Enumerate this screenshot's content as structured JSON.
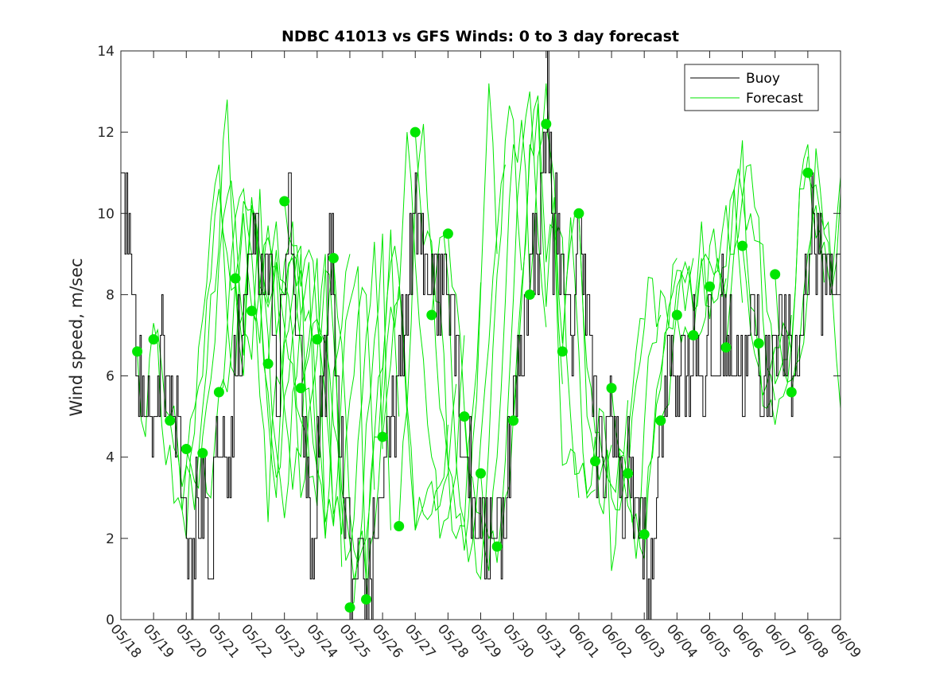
{
  "chart_data": {
    "type": "line",
    "title": "NDBC 41013 vs GFS Winds: 0 to 3 day forecast",
    "xlabel": "",
    "ylabel": "Wind speed, m/sec",
    "ylim": [
      0,
      14
    ],
    "yticks": [
      0,
      2,
      4,
      6,
      8,
      10,
      12,
      14
    ],
    "xlim": [
      0,
      22
    ],
    "xtick_labels": [
      "05/18",
      "05/19",
      "05/20",
      "05/21",
      "05/22",
      "05/23",
      "05/24",
      "05/25",
      "05/26",
      "05/27",
      "05/28",
      "05/29",
      "05/30",
      "05/31",
      "06/01",
      "06/02",
      "06/03",
      "06/04",
      "06/05",
      "06/06",
      "06/07",
      "06/08",
      "06/09"
    ],
    "grid": false,
    "legend_position": "top-right",
    "legend": [
      "Buoy",
      "Forecast"
    ],
    "colors": {
      "buoy": "#000000",
      "forecast": "#00e600",
      "axis": "#262626"
    },
    "buoy_anchors": [
      [
        0.0,
        9.5
      ],
      [
        0.1,
        11.0
      ],
      [
        0.25,
        9.0
      ],
      [
        0.45,
        7.0
      ],
      [
        0.6,
        6.0
      ],
      [
        0.8,
        4.5
      ],
      [
        1.0,
        5.0
      ],
      [
        1.25,
        7.0
      ],
      [
        1.55,
        6.0
      ],
      [
        1.8,
        5.0
      ],
      [
        2.0,
        3.0
      ],
      [
        2.2,
        1.5
      ],
      [
        2.4,
        3.0
      ],
      [
        2.6,
        2.5
      ],
      [
        2.75,
        0.3
      ],
      [
        2.9,
        3.0
      ],
      [
        3.1,
        4.5
      ],
      [
        3.3,
        3.5
      ],
      [
        3.5,
        5.5
      ],
      [
        3.7,
        7.5
      ],
      [
        3.9,
        8.5
      ],
      [
        4.1,
        10.0
      ],
      [
        4.3,
        8.0
      ],
      [
        4.5,
        9.5
      ],
      [
        4.7,
        6.5
      ],
      [
        4.85,
        5.0
      ],
      [
        5.0,
        8.5
      ],
      [
        5.15,
        10.0
      ],
      [
        5.3,
        8.5
      ],
      [
        5.5,
        6.0
      ],
      [
        5.7,
        4.0
      ],
      [
        5.8,
        2.0
      ],
      [
        5.9,
        1.0
      ],
      [
        6.1,
        5.0
      ],
      [
        6.3,
        6.5
      ],
      [
        6.4,
        8.5
      ],
      [
        6.5,
        9.5
      ],
      [
        6.6,
        5.5
      ],
      [
        6.8,
        3.5
      ],
      [
        6.95,
        2.0
      ],
      [
        7.05,
        1.0
      ],
      [
        7.2,
        0.5
      ],
      [
        7.35,
        1.5
      ],
      [
        7.5,
        0.5
      ],
      [
        7.7,
        1.5
      ],
      [
        7.9,
        2.5
      ],
      [
        8.1,
        4.0
      ],
      [
        8.3,
        4.5
      ],
      [
        8.5,
        5.5
      ],
      [
        8.7,
        7.0
      ],
      [
        8.9,
        9.0
      ],
      [
        9.0,
        10.0
      ],
      [
        9.2,
        9.0
      ],
      [
        9.4,
        8.5
      ],
      [
        9.6,
        9.0
      ],
      [
        9.8,
        8.0
      ],
      [
        10.0,
        9.0
      ],
      [
        10.2,
        8.0
      ],
      [
        10.4,
        5.5
      ],
      [
        10.6,
        4.0
      ],
      [
        10.8,
        3.0
      ],
      [
        11.0,
        2.5
      ],
      [
        11.2,
        2.0
      ],
      [
        11.4,
        2.5
      ],
      [
        11.6,
        2.0
      ],
      [
        11.8,
        3.0
      ],
      [
        12.0,
        5.0
      ],
      [
        12.2,
        6.0
      ],
      [
        12.4,
        8.0
      ],
      [
        12.6,
        9.0
      ],
      [
        12.8,
        9.0
      ],
      [
        13.0,
        12.0
      ],
      [
        13.1,
        13.5
      ],
      [
        13.2,
        9.0
      ],
      [
        13.4,
        10.5
      ],
      [
        13.6,
        7.5
      ],
      [
        13.8,
        7.0
      ],
      [
        14.0,
        9.5
      ],
      [
        14.2,
        9.0
      ],
      [
        14.4,
        6.5
      ],
      [
        14.6,
        4.0
      ],
      [
        14.8,
        3.5
      ],
      [
        15.0,
        5.5
      ],
      [
        15.2,
        4.0
      ],
      [
        15.4,
        3.0
      ],
      [
        15.6,
        4.0
      ],
      [
        15.8,
        2.5
      ],
      [
        16.0,
        2.0
      ],
      [
        16.1,
        1.0
      ],
      [
        16.2,
        0.3
      ],
      [
        16.4,
        3.0
      ],
      [
        16.6,
        5.0
      ],
      [
        16.8,
        6.5
      ],
      [
        17.0,
        6.0
      ],
      [
        17.2,
        7.0
      ],
      [
        17.4,
        6.0
      ],
      [
        17.6,
        7.5
      ],
      [
        17.8,
        5.5
      ],
      [
        18.0,
        7.0
      ],
      [
        18.2,
        6.0
      ],
      [
        18.4,
        7.5
      ],
      [
        18.6,
        6.5
      ],
      [
        18.8,
        7.0
      ],
      [
        19.0,
        6.5
      ],
      [
        19.2,
        6.0
      ],
      [
        19.4,
        7.5
      ],
      [
        19.6,
        6.0
      ],
      [
        19.8,
        5.5
      ],
      [
        20.0,
        7.0
      ],
      [
        20.2,
        7.5
      ],
      [
        20.4,
        6.5
      ],
      [
        20.6,
        6.0
      ],
      [
        20.8,
        7.0
      ],
      [
        21.0,
        9.0
      ],
      [
        21.2,
        10.0
      ],
      [
        21.4,
        8.5
      ]
    ],
    "forecast_members": [
      {
        "start": 0.5,
        "points": [
          6.6,
          4.5,
          7.3,
          4.8,
          4.3,
          3.0,
          3.8,
          5.2,
          6.0,
          8.4,
          10.6,
          9.0,
          8.2,
          6.0,
          10.2,
          8.0,
          5.6,
          3.5,
          5.5,
          7.0,
          9.0
        ]
      },
      {
        "start": 1.0,
        "points": [
          6.9,
          6.2,
          5.0,
          4.2,
          2.0,
          4.6,
          7.4,
          9.8,
          11.2,
          7.4,
          6.0,
          10.0,
          7.7,
          5.5,
          2.4,
          6.0,
          7.0,
          9.0,
          7.5
        ]
      },
      {
        "start": 1.5,
        "points": [
          4.9,
          4.0,
          3.8,
          2.7,
          5.2,
          8.0,
          9.2,
          12.8,
          8.2,
          6.5,
          10.4,
          8.0,
          5.0,
          3.0,
          6.8,
          8.0,
          9.2,
          4.0
        ]
      },
      {
        "start": 2.0,
        "points": [
          4.2,
          3.4,
          4.5,
          5.9,
          8.8,
          10.4,
          9.8,
          7.1,
          6.4,
          10.6,
          7.0,
          4.2,
          2.5,
          5.6,
          7.5,
          8.8,
          3.5
        ]
      },
      {
        "start": 2.5,
        "points": [
          4.1,
          3.0,
          5.6,
          7.2,
          9.9,
          10.6,
          9.0,
          6.8,
          9.7,
          8.7,
          5.2,
          3.2,
          4.0,
          6.9,
          8.9,
          2.0
        ]
      },
      {
        "start": 3.0,
        "points": [
          5.6,
          5.6,
          8.4,
          10.3,
          10.1,
          8.2,
          7.7,
          9.1,
          7.2,
          6.3,
          3.0,
          5.1,
          6.5,
          9.0,
          2.4
        ]
      },
      {
        "start": 3.5,
        "points": [
          8.4,
          7.6,
          10.2,
          9.0,
          7.8,
          9.8,
          8.3,
          7.0,
          4.9,
          3.5,
          2.8,
          6.5,
          9.0,
          1.3
        ]
      },
      {
        "start": 4.0,
        "points": [
          7.6,
          8.2,
          9.4,
          7.0,
          8.8,
          9.8,
          6.8,
          5.7,
          3.7,
          2.0,
          6.1,
          7.2,
          9.0
        ]
      },
      {
        "start": 4.5,
        "points": [
          6.3,
          8.8,
          8.0,
          8.9,
          8.6,
          7.6,
          4.9,
          2.4,
          2.3,
          5.7,
          7.8,
          8.7,
          0.8
        ]
      },
      {
        "start": 5.0,
        "points": [
          10.3,
          9.2,
          8.2,
          9.1,
          7.3,
          5.5,
          2.6,
          2.1,
          5.4,
          7.5,
          8.0,
          3.2
        ]
      },
      {
        "start": 5.5,
        "points": [
          5.7,
          6.5,
          7.4,
          6.8,
          4.8,
          2.8,
          1.7,
          4.4,
          7.0,
          9.3,
          4.2
        ]
      },
      {
        "start": 6.0,
        "points": [
          6.9,
          8.6,
          7.0,
          3.2,
          1.9,
          1.4,
          4.8,
          6.9,
          9.5,
          2.2
        ]
      },
      {
        "start": 6.5,
        "points": [
          8.9,
          6.8,
          2.6,
          1.4,
          2.0,
          4.5,
          6.2,
          9.6,
          5.0
        ]
      },
      {
        "start": 7.0,
        "points": [
          0.3,
          1.8,
          1.0,
          4.5,
          6.0,
          8.8,
          8.4,
          5.0,
          2.2,
          2.8,
          3.4,
          2.8,
          3.6,
          5.8
        ]
      },
      {
        "start": 7.5,
        "points": [
          0.5,
          2.2,
          5.0,
          7.7,
          8.2,
          5.3,
          2.2,
          2.6,
          2.6,
          3.3,
          4.8
        ]
      },
      {
        "start": 8.0,
        "points": [
          4.5,
          6.3,
          7.9,
          12.0,
          8.8,
          6.4,
          4.0,
          2.0,
          2.5,
          3.6,
          7.0
        ]
      },
      {
        "start": 8.5,
        "points": [
          2.3,
          5.2,
          10.4,
          12.2,
          9.0,
          5.2,
          3.8,
          2.0,
          2.3,
          5.1,
          8.3
        ]
      },
      {
        "start": 9.0,
        "points": [
          12.0,
          9.2,
          9.3,
          7.8,
          3.8,
          2.5,
          1.7,
          4.3,
          8.1,
          13.2,
          9.0
        ]
      },
      {
        "start": 9.5,
        "points": [
          7.5,
          9.4,
          8.4,
          3.9,
          2.4,
          1.9,
          4.4,
          6.8,
          9.5,
          11.2
        ]
      },
      {
        "start": 10.0,
        "points": [
          9.5,
          8.0,
          5.2,
          2.4,
          1.0,
          4.3,
          8.5,
          11.8,
          12.3,
          8.6
        ]
      },
      {
        "start": 10.5,
        "points": [
          5.0,
          3.5,
          2.6,
          1.2,
          4.0,
          7.8,
          11.7,
          12.3,
          8.3
        ]
      },
      {
        "start": 11.0,
        "points": [
          3.6,
          2.0,
          1.4,
          3.9,
          7.9,
          11.4,
          13.0,
          9.5,
          7.2
        ]
      },
      {
        "start": 11.5,
        "points": [
          1.8,
          3.0,
          5.0,
          8.2,
          11.7,
          12.7,
          7.7,
          10.4,
          5.8
        ]
      },
      {
        "start": 12.0,
        "points": [
          4.9,
          7.8,
          11.4,
          12.9,
          8.8,
          9.6,
          3.8,
          4.2,
          3.0
        ]
      },
      {
        "start": 12.5,
        "points": [
          8.0,
          11.4,
          13.2,
          9.3,
          9.4,
          5.0,
          3.6,
          3.0,
          3.2
        ]
      },
      {
        "start": 13.0,
        "points": [
          12.2,
          10.8,
          6.8,
          9.9,
          6.6,
          3.1,
          4.5,
          2.6,
          4.3
        ]
      },
      {
        "start": 13.5,
        "points": [
          6.6,
          9.3,
          10.0,
          5.0,
          3.9,
          3.9,
          3.3,
          4.2,
          5.4
        ]
      },
      {
        "start": 14.0,
        "points": [
          10.0,
          6.2,
          4.6,
          3.8,
          3.0,
          2.7,
          4.5,
          6.6,
          7.4
        ]
      },
      {
        "start": 14.5,
        "points": [
          3.9,
          5.1,
          1.2,
          4.0,
          3.4,
          5.8,
          7.2,
          8.4,
          7.5
        ]
      },
      {
        "start": 15.0,
        "points": [
          5.7,
          4.1,
          2.8,
          1.5,
          4.8,
          6.8,
          8.1,
          7.2,
          8.9
        ]
      },
      {
        "start": 15.5,
        "points": [
          3.6,
          2.6,
          1.5,
          4.2,
          6.1,
          7.7,
          8.6,
          7.6,
          8.9
        ]
      },
      {
        "start": 16.0,
        "points": [
          2.1,
          4.0,
          5.7,
          7.2,
          8.2,
          8.8,
          7.6,
          8.9,
          7.7
        ]
      },
      {
        "start": 16.5,
        "points": [
          4.9,
          5.3,
          7.6,
          8.3,
          7.6,
          9.8,
          7.4,
          8.9,
          8.4
        ]
      },
      {
        "start": 17.0,
        "points": [
          7.5,
          7.2,
          6.9,
          8.8,
          8.8,
          8.6,
          7.9,
          10.6,
          7.8
        ]
      },
      {
        "start": 17.5,
        "points": [
          7.0,
          7.1,
          9.2,
          8.6,
          10.2,
          9.0,
          11.8,
          7.7,
          6.4
        ]
      },
      {
        "start": 18.0,
        "points": [
          8.2,
          7.9,
          8.7,
          10.6,
          10.4,
          11.2,
          9.9,
          6.2,
          5.4
        ]
      },
      {
        "start": 18.5,
        "points": [
          6.7,
          9.1,
          10.4,
          10.0,
          9.3,
          7.6,
          5.8,
          6.4,
          7.5
        ]
      },
      {
        "start": 19.0,
        "points": [
          9.2,
          7.1,
          6.2,
          5.8,
          6.7,
          7.3,
          6.6,
          10.6,
          11.4
        ]
      },
      {
        "start": 19.5,
        "points": [
          6.8,
          5.2,
          4.8,
          5.5,
          6.8,
          10.6,
          11.7,
          9.4,
          8.3
        ]
      },
      {
        "start": 20.0,
        "points": [
          8.5,
          6.2,
          5.9,
          6.8,
          9.0,
          11.6,
          9.5,
          8.2,
          10.5
        ]
      },
      {
        "start": 20.5,
        "points": [
          5.6,
          6.4,
          8.1,
          10.2,
          9.3,
          8.0,
          5.2,
          10.9,
          11.5
        ]
      },
      {
        "start": 21.0,
        "points": [
          11.0,
          10.7,
          9.6,
          8.4,
          10.9,
          7.7
        ]
      }
    ]
  }
}
